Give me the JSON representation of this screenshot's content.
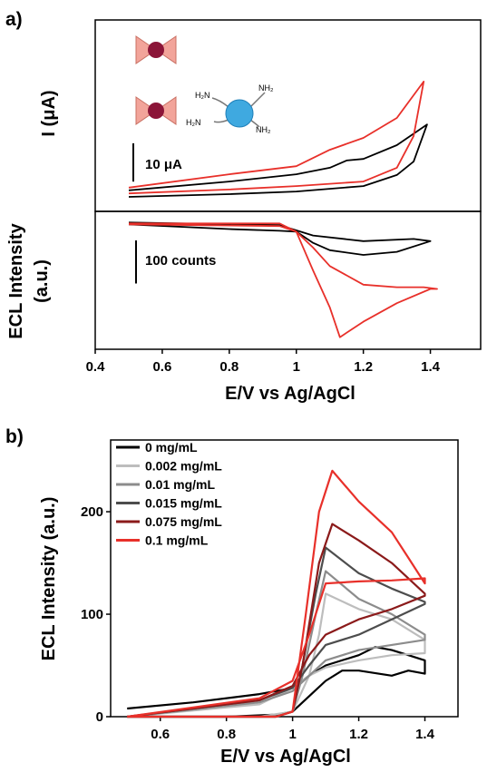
{
  "panel_labels": [
    "a)",
    "b)"
  ],
  "inset_labels": [
    "H₂N",
    "NH₂",
    "H₂N",
    "NH₂"
  ],
  "chart_data": [
    {
      "type": "line",
      "y_label": "I (μA)",
      "xlim": [
        0.4,
        1.55
      ],
      "ylim": [
        0,
        50
      ],
      "scale_bar": {
        "text": "10 μA",
        "value": 10
      },
      "series": [
        {
          "color": "#000000",
          "x": [
            0.5,
            0.8,
            1.0,
            1.1,
            1.15,
            1.2,
            1.3,
            1.39,
            1.35,
            1.3,
            1.2,
            1.0,
            0.8,
            0.5
          ],
          "values": [
            5.5,
            7.8,
            9.7,
            11.4,
            13.3,
            13.7,
            17.3,
            22.7,
            13,
            9.5,
            6.6,
            5.2,
            4.5,
            3.8
          ]
        },
        {
          "color": "#e8302a",
          "x": [
            0.5,
            0.8,
            1.0,
            1.1,
            1.2,
            1.3,
            1.38,
            1.35,
            1.3,
            1.2,
            1.0,
            0.8,
            0.5
          ],
          "values": [
            6.2,
            9.7,
            11.8,
            16.1,
            19.2,
            24.4,
            33.9,
            19.7,
            11.4,
            7.8,
            6.6,
            5.7,
            4.7
          ]
        }
      ]
    },
    {
      "type": "line",
      "y_label": [
        "ECL Intensity",
        "(a.u.)"
      ],
      "x_label": "E/V vs Ag/AgCl",
      "xlim": [
        0.4,
        1.55
      ],
      "ylim": [
        0,
        320
      ],
      "xticks": [
        0.4,
        0.6,
        0.8,
        1.0,
        1.2,
        1.4
      ],
      "scale_bar": {
        "text": "100 counts",
        "value": 100
      },
      "series": [
        {
          "color": "#000000",
          "x": [
            0.5,
            0.8,
            0.95,
            1.0,
            1.05,
            1.1,
            1.2,
            1.3,
            1.4,
            1.35,
            1.2,
            1.05,
            0.95,
            0.5
          ],
          "values": [
            290,
            279,
            275,
            273,
            247,
            230,
            219,
            226,
            251,
            256,
            251,
            264,
            288,
            294
          ]
        },
        {
          "color": "#e8302a",
          "x": [
            0.5,
            0.95,
            1.0,
            1.05,
            1.1,
            1.13,
            1.2,
            1.3,
            1.4,
            1.42,
            1.38,
            1.3,
            1.2,
            1.1,
            1.05,
            1.0,
            0.95,
            0.5
          ],
          "values": [
            292,
            292,
            273,
            183,
            97,
            28,
            64,
            107,
            140,
            140,
            144,
            144,
            150,
            193,
            236,
            273,
            286,
            290
          ]
        }
      ]
    },
    {
      "type": "line",
      "y_label": "ECL Intensity (a.u.)",
      "x_label": "E/V vs Ag/AgCl",
      "xlim": [
        0.45,
        1.5
      ],
      "ylim": [
        0,
        270
      ],
      "xticks": [
        0.6,
        0.8,
        1.0,
        1.2,
        1.4
      ],
      "yticks": [
        0,
        100,
        200
      ],
      "legend": "upper left",
      "series": [
        {
          "name": "0 mg/mL",
          "color": "#000000",
          "x": [
            0.5,
            0.7,
            0.9,
            1.0,
            1.05,
            1.1,
            1.2,
            1.25,
            1.3,
            1.35,
            1.4,
            1.4,
            1.35,
            1.3,
            1.2,
            1.15,
            1.1,
            1.05,
            1.0,
            0.95,
            0.8,
            0.5
          ],
          "values": [
            8,
            14,
            22,
            28,
            40,
            50,
            60,
            68,
            65,
            60,
            55,
            42,
            45,
            40,
            45,
            45,
            35,
            20,
            5,
            2,
            0,
            0
          ]
        },
        {
          "name": "0.002 mg/mL",
          "color": "#bdbdbd",
          "x": [
            0.5,
            0.9,
            1.0,
            1.05,
            1.1,
            1.2,
            1.3,
            1.4,
            1.4,
            1.3,
            1.2,
            1.1,
            1.08,
            1.05,
            1.0,
            0.9,
            0.5
          ],
          "values": [
            0,
            12,
            28,
            40,
            48,
            55,
            60,
            62,
            75,
            95,
            105,
            120,
            80,
            40,
            5,
            0,
            0
          ]
        },
        {
          "name": "0.01 mg/mL",
          "color": "#8c8c8c",
          "x": [
            0.5,
            0.9,
            1.0,
            1.05,
            1.1,
            1.2,
            1.3,
            1.4,
            1.4,
            1.3,
            1.2,
            1.1,
            1.07,
            1.03,
            1.0,
            0.95,
            0.5
          ],
          "values": [
            0,
            14,
            25,
            40,
            55,
            65,
            70,
            75,
            80,
            100,
            115,
            142,
            100,
            40,
            5,
            0,
            0
          ]
        },
        {
          "name": "0.015 mg/mL",
          "color": "#4d4d4d",
          "x": [
            0.5,
            0.9,
            1.0,
            1.05,
            1.1,
            1.2,
            1.3,
            1.4,
            1.4,
            1.3,
            1.2,
            1.1,
            1.07,
            1.03,
            1.0,
            0.95,
            0.5
          ],
          "values": [
            0,
            16,
            28,
            50,
            70,
            80,
            95,
            110,
            112,
            125,
            140,
            165,
            120,
            50,
            5,
            0,
            0
          ]
        },
        {
          "name": "0.075 mg/mL",
          "color": "#8b1a1a",
          "x": [
            0.5,
            0.9,
            1.0,
            1.05,
            1.1,
            1.2,
            1.3,
            1.4,
            1.4,
            1.3,
            1.2,
            1.12,
            1.08,
            1.03,
            1.0,
            0.95,
            0.5
          ],
          "values": [
            0,
            16,
            30,
            60,
            80,
            95,
            105,
            118,
            120,
            150,
            172,
            188,
            150,
            50,
            5,
            0,
            0
          ]
        },
        {
          "name": "0.1 mg/mL",
          "color": "#e8302a",
          "x": [
            0.5,
            0.9,
            1.0,
            1.05,
            1.1,
            1.2,
            1.3,
            1.4,
            1.4,
            1.35,
            1.3,
            1.2,
            1.12,
            1.08,
            1.04,
            1.0,
            0.95,
            0.5
          ],
          "values": [
            0,
            18,
            35,
            80,
            130,
            132,
            133,
            135,
            130,
            155,
            180,
            210,
            240,
            200,
            100,
            5,
            0,
            0
          ]
        }
      ]
    }
  ]
}
